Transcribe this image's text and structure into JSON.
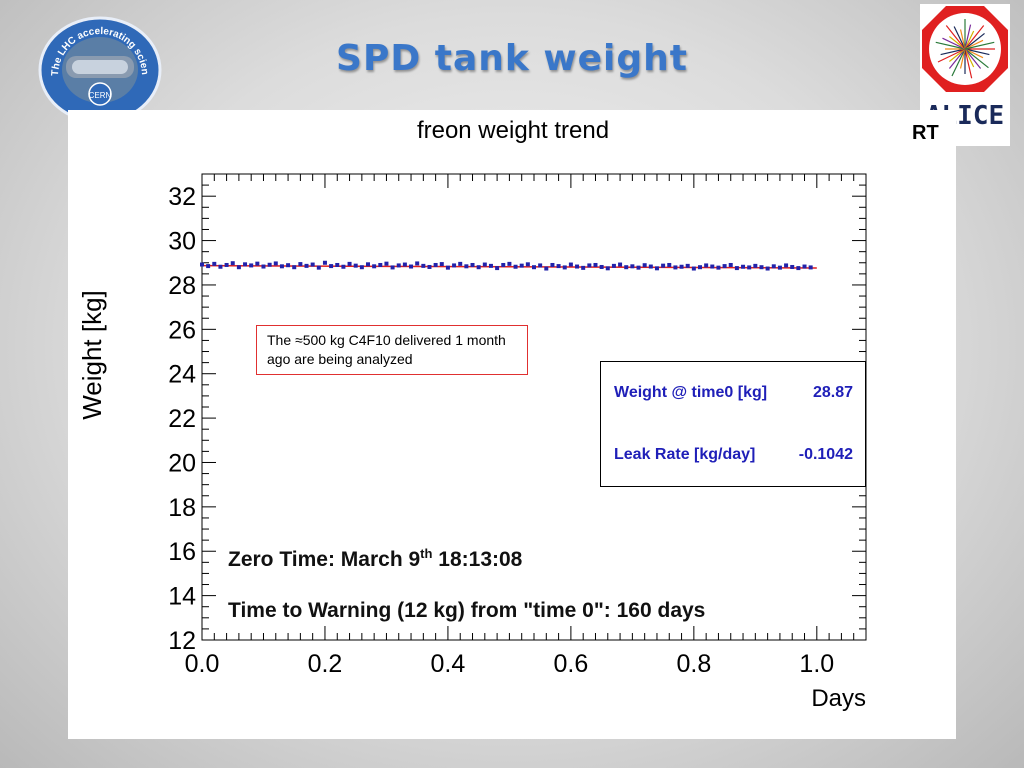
{
  "slide": {
    "title": "SPD tank weight"
  },
  "logos": {
    "lhc_text": "The LHC accelerating science",
    "lhc_cern": "CERN",
    "alice_text": "ALICE"
  },
  "colors": {
    "title": "#3a77c9",
    "data_points": "#2222aa",
    "fit_line": "#e02020",
    "stats_text": "#1f1fb8",
    "note_border": "#e03030"
  },
  "chart_data": {
    "type": "scatter",
    "title": "freon weight trend",
    "xlabel": "Days",
    "ylabel": "Weight [kg]",
    "xlim": [
      0.0,
      1.0
    ],
    "ylim": [
      12,
      33
    ],
    "xticks": [
      "0.0",
      "0.2",
      "0.4",
      "0.6",
      "0.8",
      "1.0"
    ],
    "yticks": [
      "12",
      "14",
      "16",
      "18",
      "20",
      "22",
      "24",
      "26",
      "28",
      "30",
      "32"
    ],
    "grid": false,
    "fit": {
      "intercept": 28.87,
      "slope": -0.1042,
      "x_range": [
        0.0,
        1.0
      ]
    },
    "x": [
      0.0,
      0.01,
      0.02,
      0.03,
      0.04,
      0.05,
      0.06,
      0.07,
      0.08,
      0.09,
      0.1,
      0.11,
      0.12,
      0.13,
      0.14,
      0.15,
      0.16,
      0.17,
      0.18,
      0.19,
      0.2,
      0.21,
      0.22,
      0.23,
      0.24,
      0.25,
      0.26,
      0.27,
      0.28,
      0.29,
      0.3,
      0.31,
      0.32,
      0.33,
      0.34,
      0.35,
      0.36,
      0.37,
      0.38,
      0.39,
      0.4,
      0.41,
      0.42,
      0.43,
      0.44,
      0.45,
      0.46,
      0.47,
      0.48,
      0.49,
      0.5,
      0.51,
      0.52,
      0.53,
      0.54,
      0.55,
      0.56,
      0.57,
      0.58,
      0.59,
      0.6,
      0.61,
      0.62,
      0.63,
      0.64,
      0.65,
      0.66,
      0.67,
      0.68,
      0.69,
      0.7,
      0.71,
      0.72,
      0.73,
      0.74,
      0.75,
      0.76,
      0.77,
      0.78,
      0.79,
      0.8,
      0.81,
      0.82,
      0.83,
      0.84,
      0.85,
      0.86,
      0.87,
      0.88,
      0.89,
      0.9,
      0.91,
      0.92,
      0.93,
      0.94,
      0.95,
      0.96,
      0.97,
      0.98,
      0.99
    ],
    "y": [
      28.92,
      28.85,
      28.95,
      28.82,
      28.9,
      28.98,
      28.8,
      28.93,
      28.88,
      28.96,
      28.83,
      28.91,
      28.97,
      28.84,
      28.89,
      28.8,
      28.94,
      28.86,
      28.92,
      28.78,
      29.0,
      28.85,
      28.9,
      28.82,
      28.95,
      28.87,
      28.8,
      28.93,
      28.84,
      28.9,
      28.96,
      28.79,
      28.88,
      28.92,
      28.83,
      28.97,
      28.86,
      28.81,
      28.9,
      28.94,
      28.78,
      28.88,
      28.95,
      28.84,
      28.9,
      28.8,
      28.92,
      28.86,
      28.76,
      28.9,
      28.95,
      28.82,
      28.87,
      28.93,
      28.8,
      28.88,
      28.74,
      28.9,
      28.85,
      28.79,
      28.92,
      28.83,
      28.77,
      28.88,
      28.9,
      28.81,
      28.75,
      28.86,
      28.92,
      28.8,
      28.84,
      28.78,
      28.89,
      28.83,
      28.75,
      28.87,
      28.9,
      28.79,
      28.82,
      28.86,
      28.74,
      28.8,
      28.88,
      28.83,
      28.78,
      28.85,
      28.9,
      28.76,
      28.82,
      28.79,
      28.86,
      28.8,
      28.74,
      28.84,
      28.78,
      28.88,
      28.81,
      28.76,
      28.83,
      28.79
    ]
  },
  "note": {
    "text": "The  ≈500 kg C4F10 delivered 1 month ago are being analyzed"
  },
  "stats": {
    "weight_label": "Weight @ time0 [kg]",
    "weight_value": "28.87",
    "leak_label": "Leak Rate [kg/day]",
    "leak_value": "-0.1042"
  },
  "zero_time": {
    "prefix": "Zero Time: March 9",
    "sup": "th",
    "suffix": " 18:13:08"
  },
  "warning": {
    "text": "Time to Warning (12 kg) from \"time 0\": 160 days"
  },
  "corner_label": "RT"
}
